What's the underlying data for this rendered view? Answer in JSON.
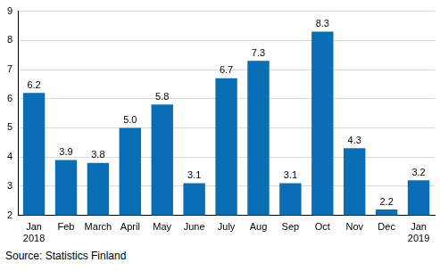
{
  "chart_data": {
    "type": "bar",
    "categories": [
      "Jan 2018",
      "Feb",
      "March",
      "April",
      "May",
      "June",
      "July",
      "Aug",
      "Sep",
      "Oct",
      "Nov",
      "Dec",
      "Jan 2019"
    ],
    "values": [
      6.2,
      3.9,
      3.8,
      5.0,
      5.8,
      3.1,
      6.7,
      7.3,
      3.1,
      8.3,
      4.3,
      2.2,
      3.2
    ],
    "value_labels": [
      "6.2",
      "3.9",
      "3.8",
      "5.0",
      "5.8",
      "3.1",
      "6.7",
      "7.3",
      "3.1",
      "8.3",
      "4.3",
      "2.2",
      "3.2"
    ],
    "data_labels": true,
    "color": "#0a6eb4",
    "ylim": [
      2,
      9
    ],
    "yticks": [
      2,
      3,
      4,
      5,
      6,
      7,
      8,
      9
    ],
    "grid": true,
    "source": "Source: Statistics Finland"
  }
}
